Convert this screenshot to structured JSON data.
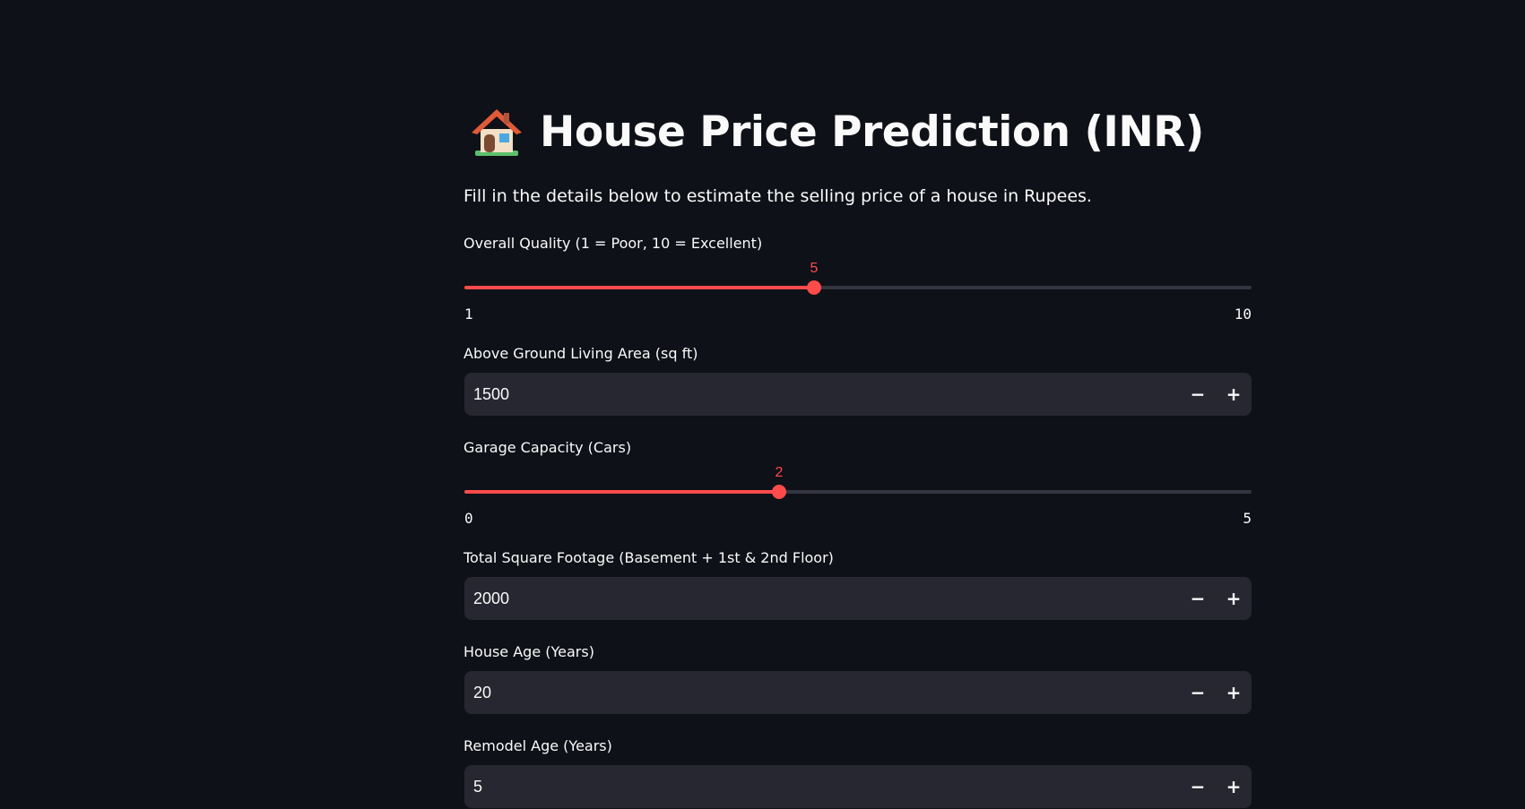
{
  "header": {
    "title_icon": "house-icon",
    "title": "House Price Prediction (INR)",
    "subtitle": "Fill in the details below to estimate the selling price of a house in Rupees."
  },
  "fields": {
    "overall_quality": {
      "label": "Overall Quality (1 = Poor, 10 = Excellent)",
      "value": "5",
      "min": "1",
      "max": "10"
    },
    "living_area": {
      "label": "Above Ground Living Area (sq ft)",
      "value": "1500"
    },
    "garage": {
      "label": "Garage Capacity (Cars)",
      "value": "2",
      "min": "0",
      "max": "5"
    },
    "total_sqft": {
      "label": "Total Square Footage (Basement + 1st & 2nd Floor)",
      "value": "2000"
    },
    "house_age": {
      "label": "House Age (Years)",
      "value": "20"
    },
    "remodel_age": {
      "label": "Remodel Age (Years)",
      "value": "5"
    }
  },
  "controls": {
    "decrement_symbol": "−",
    "increment_symbol": "+"
  },
  "colors": {
    "background": "#0e1117",
    "accent": "#ff4b4b",
    "input_bg": "#262730"
  }
}
